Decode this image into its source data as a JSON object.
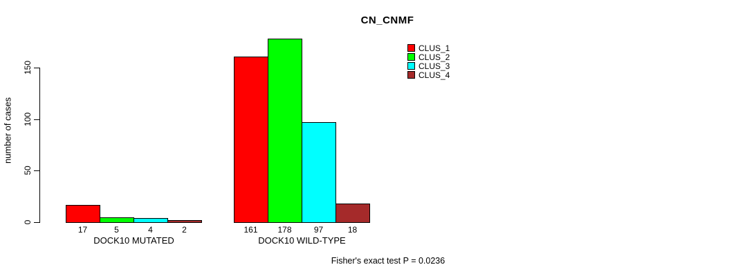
{
  "chart_data": {
    "type": "bar",
    "title": "CN_CNMF",
    "xlabel": "",
    "ylabel": "number of cases",
    "categories": [
      "DOCK10 MUTATED",
      "DOCK10 WILD-TYPE"
    ],
    "series": [
      {
        "name": "CLUS_1",
        "color": "#FF0000",
        "values": [
          17,
          161
        ]
      },
      {
        "name": "CLUS_2",
        "color": "#00FF00",
        "values": [
          5,
          178
        ]
      },
      {
        "name": "CLUS_3",
        "color": "#00FFFF",
        "values": [
          4,
          97
        ]
      },
      {
        "name": "CLUS_4",
        "color": "#A52A2A",
        "values": [
          2,
          18
        ]
      }
    ],
    "yticks": [
      0,
      50,
      100,
      150
    ],
    "ylim": [
      0,
      150
    ],
    "grid": false,
    "legend_position": "top-right",
    "bar_value_labels": [
      [
        "17",
        "5",
        "4",
        "2"
      ],
      [
        "161",
        "178",
        "97",
        "18"
      ]
    ]
  },
  "annotation": "Fisher's exact test P = 0.0236",
  "colors": {
    "background": "#FFFFFF",
    "axis": "#000000",
    "bar_border": "#000000",
    "text": "#000000"
  }
}
